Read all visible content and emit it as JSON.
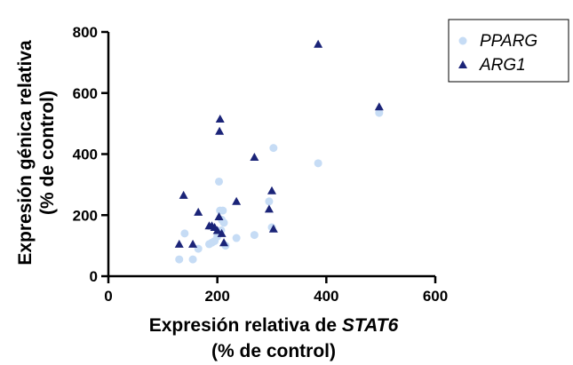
{
  "chart_data": {
    "type": "scatter",
    "xlabel_line1_prefix": "Expresión relativa de ",
    "xlabel_line1_italic": "STAT6",
    "xlabel_line2": "(% de control)",
    "ylabel_line1": "Expresión génica relativa",
    "ylabel_line2": "(% de control)",
    "xlim": [
      0,
      600
    ],
    "ylim": [
      0,
      800
    ],
    "x_ticks": [
      0,
      200,
      400,
      600
    ],
    "y_ticks": [
      0,
      200,
      400,
      600,
      800
    ],
    "grid": false,
    "legend_position": "top-right",
    "series": [
      {
        "name": "PPARG",
        "marker": "circle",
        "color": "#c6dcf5",
        "points": [
          [
            130,
            55
          ],
          [
            140,
            140
          ],
          [
            155,
            55
          ],
          [
            165,
            90
          ],
          [
            185,
            105
          ],
          [
            190,
            110
          ],
          [
            195,
            115
          ],
          [
            200,
            130
          ],
          [
            203,
            310
          ],
          [
            205,
            215
          ],
          [
            207,
            150
          ],
          [
            208,
            185
          ],
          [
            210,
            215
          ],
          [
            212,
            175
          ],
          [
            215,
            100
          ],
          [
            235,
            125
          ],
          [
            268,
            135
          ],
          [
            295,
            245
          ],
          [
            300,
            160
          ],
          [
            303,
            420
          ],
          [
            385,
            370
          ],
          [
            497,
            535
          ]
        ]
      },
      {
        "name": "ARG1",
        "marker": "triangle",
        "color": "#1b2478",
        "points": [
          [
            130,
            105
          ],
          [
            138,
            265
          ],
          [
            155,
            105
          ],
          [
            165,
            210
          ],
          [
            185,
            165
          ],
          [
            190,
            165
          ],
          [
            195,
            160
          ],
          [
            200,
            150
          ],
          [
            203,
            195
          ],
          [
            204,
            475
          ],
          [
            205,
            515
          ],
          [
            208,
            140
          ],
          [
            212,
            110
          ],
          [
            235,
            245
          ],
          [
            268,
            390
          ],
          [
            295,
            220
          ],
          [
            300,
            280
          ],
          [
            303,
            155
          ],
          [
            385,
            760
          ],
          [
            497,
            555
          ]
        ]
      }
    ]
  }
}
